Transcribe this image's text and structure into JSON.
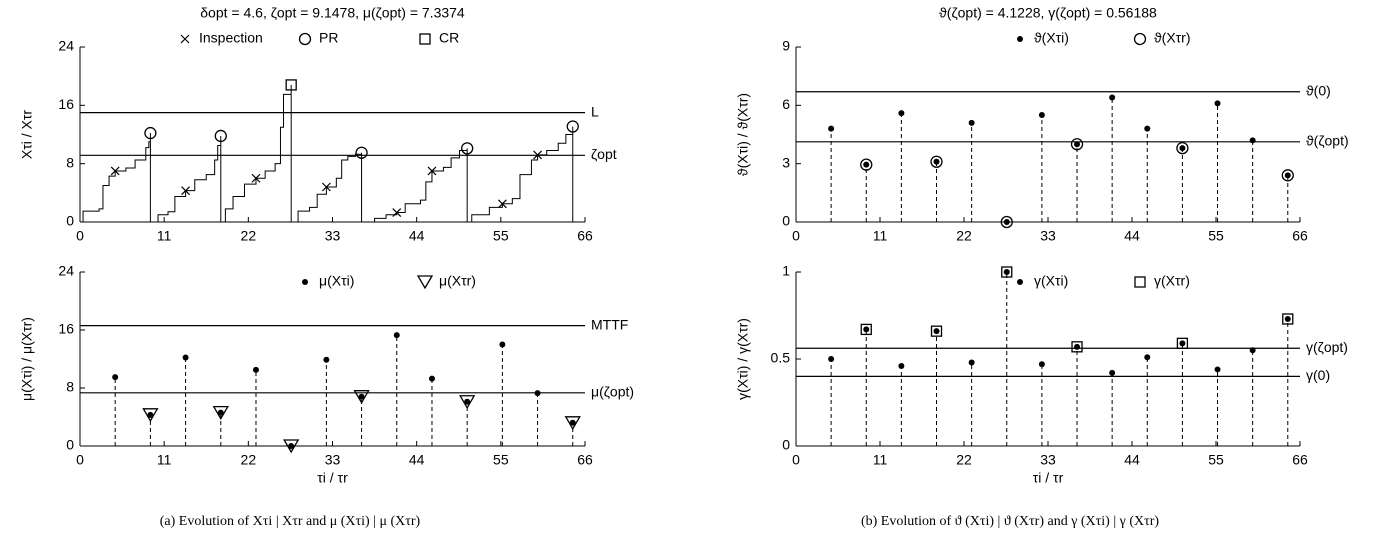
{
  "chart_data": [
    {
      "type": "line",
      "title": "δopt = 4.6, ζopt = 9.1478, μ(ζopt) = 7.3374",
      "ylabel": "Xτi / Xτr",
      "xlim": [
        0,
        66
      ],
      "xticks": [
        0,
        11,
        22,
        33,
        44,
        55,
        66
      ],
      "ylim": [
        0,
        24
      ],
      "yticks": [
        0,
        8,
        16,
        24
      ],
      "legend": "upper right",
      "drawstyle": "steps-post",
      "color": "#000000",
      "path": {
        "x": [
          0,
          0.4,
          2.5,
          3.0,
          3.8,
          4.6,
          6.0,
          7.2,
          8.6,
          9.0,
          9.2,
          9.2,
          10.2,
          11.5,
          12.4,
          13.8,
          15.0,
          16.5,
          17.6,
          18.0,
          18.4,
          18.4,
          19.0,
          20.0,
          21.5,
          23.0,
          24.2,
          25.5,
          26.2,
          26.6,
          27.6,
          27.6,
          28.5,
          30.0,
          31.0,
          32.2,
          33.5,
          34.2,
          35.0,
          36.0,
          36.8,
          36.8,
          38.5,
          40.0,
          41.4,
          42.5,
          44.5,
          45.2,
          46.0,
          47.5,
          48.5,
          49.6,
          50.6,
          50.6,
          51.2,
          53.5,
          55.2,
          56.5,
          57.5,
          59.0,
          59.8,
          61.0,
          62.5,
          63.5,
          64.4,
          64.4
        ],
        "y": [
          0,
          1.5,
          1.8,
          5.0,
          6.3,
          7.0,
          7.4,
          8.5,
          10.2,
          11.0,
          12.2,
          0,
          1.0,
          1.4,
          3.5,
          4.3,
          5.8,
          6.5,
          8.5,
          10.5,
          11.8,
          0,
          1.8,
          3.5,
          5.2,
          6.0,
          7.0,
          8.0,
          13.0,
          17.5,
          18.8,
          0,
          1.5,
          2.0,
          3.8,
          4.8,
          6.0,
          8.5,
          9.0,
          9.3,
          9.5,
          0,
          0.5,
          1.0,
          1.3,
          2.5,
          3.0,
          5.5,
          7.0,
          7.5,
          8.8,
          9.8,
          10.1,
          0,
          1.0,
          2.0,
          2.5,
          3.2,
          6.5,
          8.5,
          9.2,
          9.8,
          10.8,
          12.0,
          13.1,
          0
        ]
      },
      "series": [
        {
          "name": "Inspection",
          "marker": "x",
          "x": [
            4.6,
            13.8,
            23.0,
            32.2,
            41.4,
            46.0,
            55.2,
            59.8
          ],
          "values": [
            7.0,
            4.3,
            6.0,
            4.8,
            1.3,
            7.0,
            2.5,
            9.2
          ]
        },
        {
          "name": "PR",
          "marker": "o",
          "x": [
            9.2,
            18.4,
            36.8,
            50.6,
            64.4
          ],
          "values": [
            12.2,
            11.8,
            9.5,
            10.1,
            13.1
          ]
        },
        {
          "name": "CR",
          "marker": "s",
          "x": [
            27.6
          ],
          "values": [
            18.8
          ]
        }
      ],
      "hlines": [
        {
          "label": "L",
          "value": 15
        },
        {
          "label": "ζopt",
          "value": 9.1478
        }
      ]
    },
    {
      "type": "stem",
      "title": "ϑ(ζopt) = 4.1228, γ(ζopt) = 0.56188",
      "ylabel": "ϑ(Xτi) / ϑ(Xτr)",
      "xlim": [
        0,
        66
      ],
      "xticks": [
        0,
        11,
        22,
        33,
        44,
        55,
        66
      ],
      "ylim": [
        0,
        9
      ],
      "yticks": [
        0,
        3,
        6,
        9
      ],
      "legend": "upper right",
      "series": [
        {
          "name": "ϑ(Xτi)",
          "marker": ".",
          "x": [
            4.6,
            13.8,
            23.0,
            32.2,
            41.4,
            46.0,
            55.2,
            59.8
          ],
          "values": [
            4.8,
            5.6,
            5.1,
            5.5,
            6.4,
            4.8,
            6.1,
            4.2
          ]
        },
        {
          "name": "ϑ(Xτr)",
          "marker": "o",
          "x": [
            9.2,
            18.4,
            27.6,
            36.8,
            50.6,
            64.4
          ],
          "values": [
            2.95,
            3.1,
            0,
            4.0,
            3.8,
            2.4
          ]
        }
      ],
      "hlines": [
        {
          "label": "ϑ(0)",
          "value": 6.7
        },
        {
          "label": "ϑ(ζopt)",
          "value": 4.1228
        }
      ]
    },
    {
      "type": "stem",
      "ylabel": "μ(Xτi) / μ(Xτr)",
      "xlabel": "τi / τr",
      "xlim": [
        0,
        66
      ],
      "xticks": [
        0,
        11,
        22,
        33,
        44,
        55,
        66
      ],
      "ylim": [
        0,
        24
      ],
      "yticks": [
        0,
        8,
        16,
        24
      ],
      "legend": "upper right",
      "series": [
        {
          "name": "μ(Xτi)",
          "marker": ".",
          "x": [
            4.6,
            13.8,
            23.0,
            32.2,
            41.4,
            46.0,
            55.2,
            59.8
          ],
          "values": [
            9.5,
            12.2,
            10.5,
            11.9,
            15.3,
            9.3,
            14.0,
            7.3
          ]
        },
        {
          "name": "μ(Xτr)",
          "marker": "v",
          "x": [
            9.2,
            18.4,
            27.6,
            36.8,
            50.6,
            64.4
          ],
          "values": [
            4.3,
            4.6,
            0,
            6.8,
            6.1,
            3.2
          ]
        }
      ],
      "hlines": [
        {
          "label": "MTTF",
          "value": 16.6
        },
        {
          "label": "μ(ζopt)",
          "value": 7.3374
        }
      ]
    },
    {
      "type": "stem",
      "ylabel": "γ(Xτi) / γ(Xτr)",
      "xlabel": "τi / τr",
      "xlim": [
        0,
        66
      ],
      "xticks": [
        0,
        11,
        22,
        33,
        44,
        55,
        66
      ],
      "ylim": [
        0,
        1
      ],
      "yticks": [
        0,
        0.5,
        1
      ],
      "legend": "upper right",
      "series": [
        {
          "name": "γ(Xτi)",
          "marker": ".",
          "x": [
            4.6,
            13.8,
            23.0,
            32.2,
            41.4,
            46.0,
            55.2,
            59.8
          ],
          "values": [
            0.5,
            0.46,
            0.48,
            0.47,
            0.42,
            0.51,
            0.44,
            0.55
          ]
        },
        {
          "name": "γ(Xτr)",
          "marker": "s",
          "x": [
            9.2,
            18.4,
            27.6,
            36.8,
            50.6,
            64.4
          ],
          "values": [
            0.67,
            0.66,
            1.0,
            0.57,
            0.59,
            0.73
          ]
        }
      ],
      "hlines": [
        {
          "label": "γ(ζopt)",
          "value": 0.56188
        },
        {
          "label": "γ(0)",
          "value": 0.4
        }
      ]
    }
  ],
  "captions": [
    "(a) Evolution of Xτi | Xτr and μ (Xτi) | μ (Xτr)",
    "(b) Evolution of ϑ (Xτi) | ϑ (Xτr) and γ (Xτi) | γ (Xτr)"
  ]
}
